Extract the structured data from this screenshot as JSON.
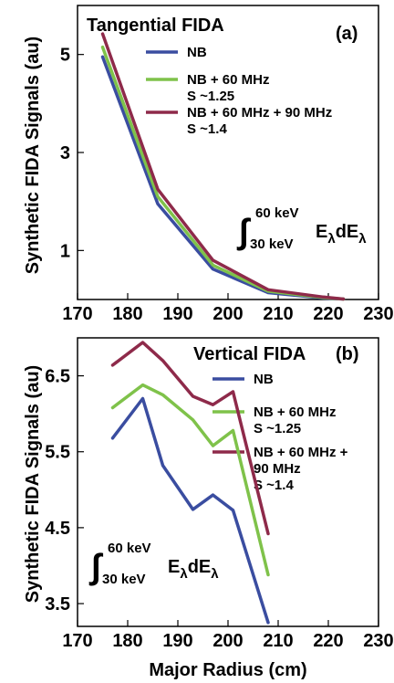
{
  "colors": {
    "NB": "#3a4da0",
    "NB60": "#7fc24a",
    "NB6090": "#8e2a4a"
  },
  "chart_data": [
    {
      "panel": "(a)",
      "title": "Tangential FIDA",
      "type": "line",
      "ylabel": "Synthetic FIDA Signals (au)",
      "xlim": [
        170,
        230
      ],
      "ylim": [
        0,
        6
      ],
      "xticks": [
        170,
        180,
        190,
        200,
        210,
        220,
        230
      ],
      "yticks": [
        1,
        3,
        5
      ],
      "integral": {
        "upper": "60 keV",
        "lower": "30 keV",
        "body": "E",
        "sub1": "λ",
        "mid": "dE",
        "sub2": "λ"
      },
      "series": [
        {
          "name": "NB",
          "color": "#3a4da0",
          "x": [
            175,
            186,
            197,
            208,
            219,
            223
          ],
          "y": [
            4.95,
            1.95,
            0.62,
            0.14,
            0.03,
            0.01
          ]
        },
        {
          "name": "NB + 60 MHz",
          "note": "S ~1.25",
          "color": "#7fc24a",
          "x": [
            175,
            186,
            197,
            208,
            219,
            223
          ],
          "y": [
            5.15,
            2.1,
            0.7,
            0.17,
            0.04,
            0.01
          ]
        },
        {
          "name": "NB + 60 MHz + 90 MHz",
          "note": "S ~1.4",
          "color": "#8e2a4a",
          "x": [
            175,
            186,
            197,
            208,
            219,
            223
          ],
          "y": [
            5.42,
            2.25,
            0.8,
            0.2,
            0.05,
            0.01
          ]
        }
      ]
    },
    {
      "panel": "(b)",
      "title": "Vertical FIDA",
      "type": "line",
      "ylabel": "Synthetic FIDA Signals (au)",
      "xlabel": "Major Radius (cm)",
      "xlim": [
        170,
        230
      ],
      "ylim": [
        3.2,
        7.0
      ],
      "xticks": [
        170,
        180,
        190,
        200,
        210,
        220,
        230
      ],
      "yticks": [
        3.5,
        4.5,
        5.5,
        6.5
      ],
      "integral": {
        "upper": "60 keV",
        "lower": "30 keV",
        "body": "E",
        "sub1": "λ",
        "mid": "dE",
        "sub2": "λ"
      },
      "series": [
        {
          "name": "NB",
          "color": "#3a4da0",
          "x": [
            177,
            183,
            187,
            193,
            197,
            201,
            208
          ],
          "y": [
            5.68,
            6.2,
            5.32,
            4.74,
            4.93,
            4.73,
            3.25
          ]
        },
        {
          "name": "NB + 60 MHz",
          "note": "S ~1.25",
          "color": "#7fc24a",
          "x": [
            177,
            183,
            187,
            193,
            197,
            201,
            208
          ],
          "y": [
            6.08,
            6.38,
            6.25,
            5.92,
            5.58,
            5.78,
            3.88
          ]
        },
        {
          "name": "NB + 60 MHz +",
          "name_line2": "90 MHz",
          "note": "S ~1.4",
          "color": "#8e2a4a",
          "x": [
            177,
            183,
            187,
            193,
            197,
            201,
            208
          ],
          "y": [
            6.64,
            6.94,
            6.7,
            6.23,
            6.12,
            6.29,
            4.42
          ]
        }
      ]
    }
  ]
}
